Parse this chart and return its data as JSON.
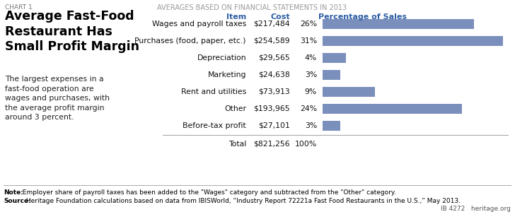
{
  "chart_label": "CHART 1",
  "title": "Average Fast-Food\nRestaurant Has\nSmall Profit Margin",
  "subtitle": "AVERAGES BASED ON FINANCIAL STATEMENTS IN 2013",
  "description": "The largest expenses in a\nfast-food operation are\nwages and purchases, with\nthe average profit margin\naround 3 percent.",
  "col_header_item": "Item",
  "col_header_cost": "Cost",
  "col_header_pct": "Percentage of Sales",
  "items": [
    "Wages and payroll taxes",
    "Purchases (food, paper, etc.)",
    "Depreciation",
    "Marketing",
    "Rent and utilities",
    "Other",
    "Before-tax profit"
  ],
  "costs": [
    "$217,484",
    "$254,589",
    "$29,565",
    "$24,638",
    "$73,913",
    "$193,965",
    "$27,101"
  ],
  "percentages": [
    "26%",
    "31%",
    "4%",
    "3%",
    "9%",
    "24%",
    "3%"
  ],
  "values": [
    26,
    31,
    4,
    3,
    9,
    24,
    3
  ],
  "total_label": "Total",
  "total_cost": "$821,256",
  "total_pct": "100%",
  "bar_color": "#7b8fbd",
  "header_color": "#2e5fa3",
  "note_bold": "Note:",
  "note_rest": " Employer share of payroll taxes has been added to the \"Wages\" category and subtracted from the \"Other\" category.",
  "source_bold": "Source:",
  "source_rest": " Heritage Foundation calculations based on data from IBISWorld, “Industry Report 72221a Fast Food Restaurants in the U.S.,” May 2013.",
  "footer_right": "IB 4272   heritage.org",
  "bg_color": "#ffffff"
}
